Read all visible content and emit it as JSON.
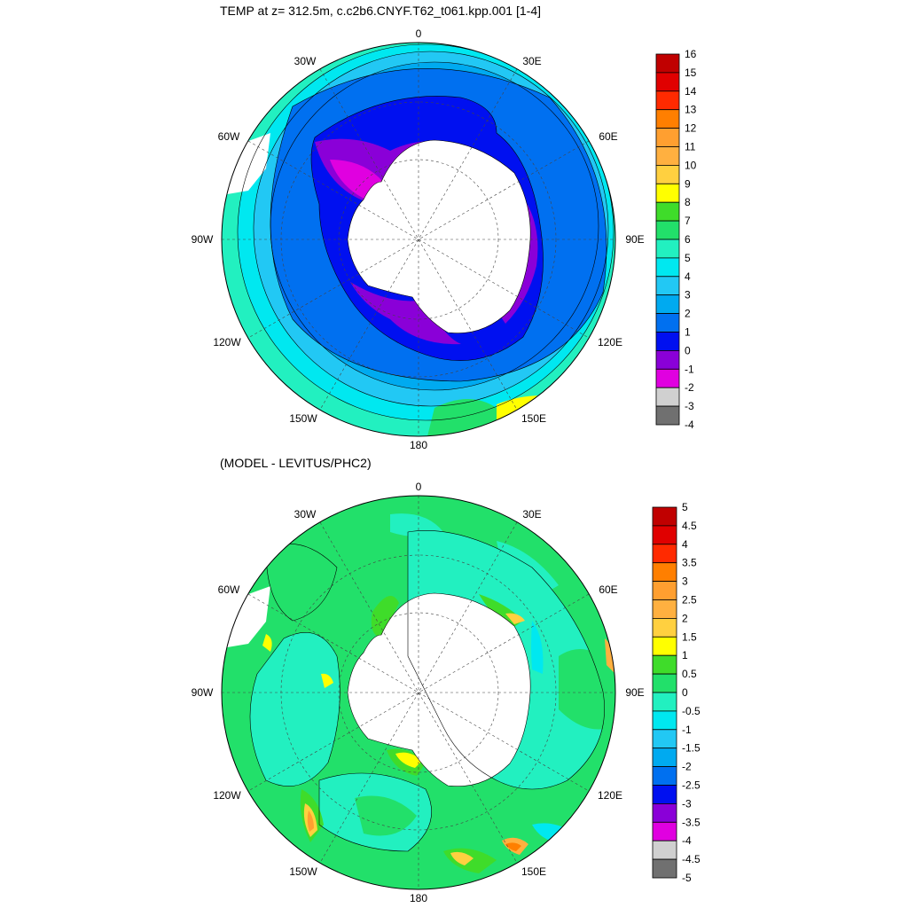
{
  "panel_top": {
    "title": "TEMP at z= 312.5m, c.c2b6.CNYF.T62_t061.kpp.001 [1-4]",
    "lon_labels": {
      "n": "0",
      "ne": "30E",
      "e1": "60E",
      "e": "90E",
      "se1": "120E",
      "se": "150E",
      "s": "180",
      "sw": "150W",
      "w1": "120W",
      "w": "90W",
      "nw1": "60W",
      "nw": "30W"
    },
    "colorbar": {
      "labels": [
        "16",
        "15",
        "14",
        "13",
        "12",
        "11",
        "10",
        "9",
        "8",
        "7",
        "6",
        "5",
        "4",
        "3",
        "2",
        "1",
        "0",
        "-1",
        "-2",
        "-3",
        "-4"
      ],
      "colors": [
        "#c00000",
        "#e00000",
        "#ff2a00",
        "#ff7f00",
        "#ff9f30",
        "#ffb040",
        "#ffd040",
        "#ffff00",
        "#3fdc2a",
        "#22e06a",
        "#22f0c0",
        "#00e8f0",
        "#22c8f4",
        "#00aaf0",
        "#0070f0",
        "#0010f0",
        "#8a00d8",
        "#e000e0",
        "#d0d0d0",
        "#707070"
      ]
    }
  },
  "panel_bottom": {
    "title": "(MODEL - LEVITUS/PHC2)",
    "lon_labels": {
      "n": "0",
      "ne": "30E",
      "e1": "60E",
      "e": "90E",
      "se1": "120E",
      "se": "150E",
      "s": "180",
      "sw": "150W",
      "w1": "120W",
      "w": "90W",
      "nw1": "60W",
      "nw": "30W"
    },
    "colorbar": {
      "labels": [
        "5",
        "4.5",
        "4",
        "3.5",
        "3",
        "2.5",
        "2",
        "1.5",
        "1",
        "0.5",
        "0",
        "-0.5",
        "-1",
        "-1.5",
        "-2",
        "-2.5",
        "-3",
        "-3.5",
        "-4",
        "-4.5",
        "-5"
      ],
      "colors": [
        "#c00000",
        "#e00000",
        "#ff2a00",
        "#ff7f00",
        "#ff9f30",
        "#ffb040",
        "#ffd040",
        "#ffff00",
        "#3fdc2a",
        "#22e06a",
        "#22f0c0",
        "#00e8f0",
        "#22c8f4",
        "#00aaf0",
        "#0070f0",
        "#0010f0",
        "#8a00d8",
        "#e000e0",
        "#d0d0d0",
        "#707070"
      ]
    }
  }
}
